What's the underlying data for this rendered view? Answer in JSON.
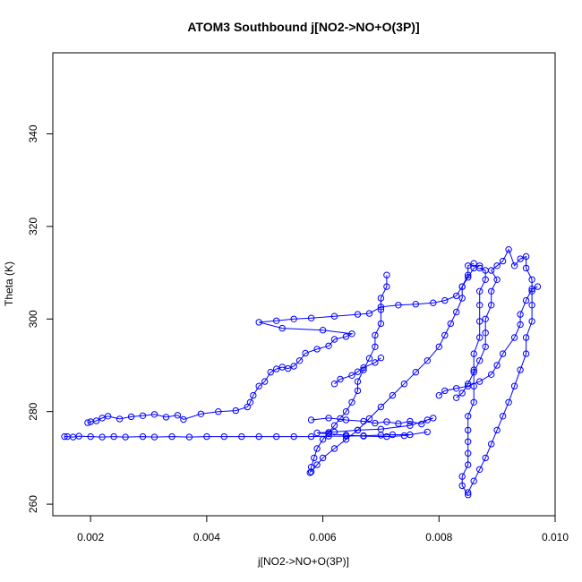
{
  "chart_data": {
    "type": "scatter",
    "title": "ATOM3 Southbound j[NO2->NO+O(3P)]",
    "xlabel": "j[NO2->NO+O(3P)]",
    "ylabel": "Theta (K)",
    "xlim": [
      0.00135,
      0.01
    ],
    "ylim": [
      257.5,
      357.5
    ],
    "x_ticks": [
      0.002,
      0.004,
      0.006,
      0.008,
      0.01
    ],
    "x_tick_labels": [
      "0.002",
      "0.004",
      "0.006",
      "0.008",
      "0.010"
    ],
    "y_ticks": [
      260,
      280,
      300,
      320,
      340
    ],
    "y_tick_labels": [
      "260",
      "280",
      "300",
      "320",
      "340"
    ],
    "grid": false,
    "marker": "open-circle",
    "connected_by_lines": true,
    "color": "#0000ff",
    "series": [
      {
        "points": [
          [
            0.00155,
            274.6
          ],
          [
            0.0016,
            274.6
          ],
          [
            0.0017,
            274.5
          ],
          [
            0.0018,
            274.7
          ],
          [
            0.002,
            274.6
          ],
          [
            0.0022,
            274.5
          ],
          [
            0.0024,
            274.6
          ],
          [
            0.0026,
            274.5
          ],
          [
            0.0029,
            274.6
          ],
          [
            0.0031,
            274.5
          ],
          [
            0.0034,
            274.6
          ],
          [
            0.0037,
            274.5
          ],
          [
            0.004,
            274.6
          ],
          [
            0.0043,
            274.6
          ],
          [
            0.0046,
            274.6
          ],
          [
            0.0049,
            274.6
          ],
          [
            0.0052,
            274.6
          ],
          [
            0.0055,
            274.6
          ],
          [
            0.0058,
            274.6
          ],
          [
            0.0061,
            274.7
          ],
          [
            0.0064,
            274.7
          ],
          [
            0.0067,
            274.8
          ],
          [
            0.007,
            274.9
          ],
          [
            0.0072,
            275.0
          ],
          [
            0.0075,
            275.0
          ]
        ]
      },
      {
        "points": [
          [
            0.00195,
            277.6
          ],
          [
            0.002,
            277.8
          ],
          [
            0.0021,
            278.0
          ],
          [
            0.0022,
            278.6
          ],
          [
            0.0023,
            279.0
          ],
          [
            0.0025,
            278.4
          ],
          [
            0.0027,
            278.9
          ],
          [
            0.0029,
            279.1
          ],
          [
            0.0031,
            279.4
          ],
          [
            0.0033,
            278.8
          ],
          [
            0.0035,
            279.2
          ],
          [
            0.0036,
            278.3
          ],
          [
            0.0039,
            279.5
          ],
          [
            0.0042,
            280.0
          ],
          [
            0.0045,
            280.2
          ],
          [
            0.0047,
            281.0
          ],
          [
            0.00475,
            282.0
          ],
          [
            0.0048,
            283.5
          ],
          [
            0.0049,
            285.5
          ],
          [
            0.005,
            286.5
          ],
          [
            0.0051,
            288.5
          ],
          [
            0.0052,
            289.2
          ],
          [
            0.0053,
            289.6
          ],
          [
            0.0054,
            289.3
          ],
          [
            0.0055,
            289.8
          ],
          [
            0.0056,
            291.0
          ],
          [
            0.0057,
            292.6
          ],
          [
            0.0059,
            293.5
          ],
          [
            0.0061,
            294.2
          ],
          [
            0.0062,
            295.6
          ],
          [
            0.0064,
            296.2
          ],
          [
            0.0065,
            296.8
          ],
          [
            0.006,
            297.6
          ],
          [
            0.0053,
            298.0
          ],
          [
            0.0049,
            299.3
          ],
          [
            0.0052,
            299.6
          ],
          [
            0.0055,
            300.0
          ],
          [
            0.0058,
            300.2
          ],
          [
            0.0062,
            300.6
          ],
          [
            0.0066,
            301.0
          ],
          [
            0.0068,
            301.2
          ],
          [
            0.007,
            302.6
          ],
          [
            0.0073,
            303.0
          ],
          [
            0.0076,
            303.2
          ],
          [
            0.0079,
            303.5
          ],
          [
            0.0081,
            304.0
          ],
          [
            0.0083,
            305.0
          ],
          [
            0.0084,
            307.0
          ],
          [
            0.0085,
            309.0
          ],
          [
            0.0086,
            311.0
          ],
          [
            0.0087,
            311.5
          ]
        ]
      },
      {
        "points": [
          [
            0.0058,
            278.2
          ],
          [
            0.0061,
            278.6
          ],
          [
            0.0064,
            278.2
          ],
          [
            0.0067,
            277.9
          ],
          [
            0.0069,
            277.5
          ],
          [
            0.0071,
            277.8
          ],
          [
            0.0073,
            277.4
          ],
          [
            0.0075,
            277.9
          ],
          [
            0.0077,
            277.3
          ],
          [
            0.0078,
            278.2
          ],
          [
            0.0079,
            278.6
          ],
          [
            0.0075,
            277.0
          ],
          [
            0.007,
            276.2
          ],
          [
            0.0066,
            276.0
          ],
          [
            0.0062,
            275.6
          ],
          [
            0.0059,
            275.4
          ],
          [
            0.0061,
            275.2
          ],
          [
            0.0064,
            274.9
          ],
          [
            0.0067,
            274.7
          ],
          [
            0.0071,
            274.6
          ],
          [
            0.0074,
            274.8
          ],
          [
            0.0078,
            275.6
          ]
        ]
      },
      {
        "points": [
          [
            0.00578,
            266.8
          ],
          [
            0.0058,
            268.0
          ],
          [
            0.00585,
            270.0
          ],
          [
            0.0059,
            272.0
          ],
          [
            0.006,
            274.0
          ],
          [
            0.0061,
            275.5
          ],
          [
            0.0062,
            277.0
          ],
          [
            0.0063,
            278.5
          ],
          [
            0.0064,
            280.0
          ],
          [
            0.0065,
            282.0
          ],
          [
            0.0066,
            284.5
          ],
          [
            0.0066,
            286.5
          ],
          [
            0.0067,
            289.0
          ],
          [
            0.0068,
            291.5
          ],
          [
            0.0069,
            294.0
          ],
          [
            0.0069,
            296.5
          ],
          [
            0.007,
            299.0
          ],
          [
            0.007,
            302.0
          ],
          [
            0.007,
            304.5
          ],
          [
            0.0071,
            307.0
          ],
          [
            0.0071,
            309.5
          ]
        ]
      },
      {
        "points": [
          [
            0.0058,
            267.0
          ],
          [
            0.0059,
            268.5
          ],
          [
            0.006,
            270.0
          ],
          [
            0.0062,
            272.0
          ],
          [
            0.0064,
            274.0
          ],
          [
            0.0066,
            276.0
          ],
          [
            0.0068,
            278.5
          ],
          [
            0.007,
            281.0
          ],
          [
            0.0072,
            283.5
          ],
          [
            0.0074,
            286.0
          ],
          [
            0.0076,
            288.5
          ],
          [
            0.0078,
            291.0
          ],
          [
            0.008,
            294.0
          ],
          [
            0.0081,
            296.5
          ],
          [
            0.0082,
            299.0
          ],
          [
            0.0083,
            301.5
          ],
          [
            0.0084,
            304.5
          ],
          [
            0.0084,
            307.0
          ],
          [
            0.0085,
            309.5
          ],
          [
            0.0085,
            311.5
          ],
          [
            0.0086,
            312.0
          ]
        ]
      },
      {
        "points": [
          [
            0.0062,
            286.0
          ],
          [
            0.0063,
            287.0
          ],
          [
            0.0065,
            287.8
          ],
          [
            0.0066,
            288.6
          ],
          [
            0.0067,
            289.5
          ],
          [
            0.0069,
            290.6
          ],
          [
            0.007,
            291.6
          ]
        ]
      },
      {
        "points": [
          [
            0.0085,
            262.0
          ],
          [
            0.0084,
            264.0
          ],
          [
            0.0084,
            266.0
          ],
          [
            0.0085,
            268.5
          ],
          [
            0.0085,
            271.0
          ],
          [
            0.0085,
            273.5
          ],
          [
            0.0085,
            276.0
          ],
          [
            0.0085,
            279.0
          ],
          [
            0.0086,
            282.0
          ],
          [
            0.0086,
            285.5
          ],
          [
            0.0086,
            289.0
          ],
          [
            0.0086,
            292.5
          ],
          [
            0.0087,
            296.0
          ],
          [
            0.0087,
            299.5
          ],
          [
            0.0087,
            303.0
          ],
          [
            0.0087,
            306.0
          ],
          [
            0.0088,
            308.5
          ],
          [
            0.0088,
            310.5
          ],
          [
            0.0087,
            311.0
          ]
        ]
      },
      {
        "points": [
          [
            0.0085,
            262.5
          ],
          [
            0.0086,
            265.0
          ],
          [
            0.0087,
            267.5
          ],
          [
            0.0088,
            270.0
          ],
          [
            0.0089,
            273.0
          ],
          [
            0.009,
            276.0
          ],
          [
            0.0091,
            279.0
          ],
          [
            0.0092,
            282.0
          ],
          [
            0.0093,
            285.5
          ],
          [
            0.0094,
            289.0
          ],
          [
            0.0095,
            292.5
          ],
          [
            0.0095,
            296.0
          ],
          [
            0.0096,
            299.5
          ],
          [
            0.0096,
            303.0
          ],
          [
            0.0096,
            306.0
          ],
          [
            0.0096,
            308.5
          ],
          [
            0.0095,
            311.0
          ],
          [
            0.0095,
            313.5
          ],
          [
            0.0094,
            313.0
          ],
          [
            0.0093,
            311.5
          ],
          [
            0.0092,
            315.0
          ],
          [
            0.0091,
            312.5
          ],
          [
            0.009,
            311.5
          ],
          [
            0.0089,
            310.5
          ],
          [
            0.009,
            308.5
          ],
          [
            0.0089,
            306.0
          ],
          [
            0.0089,
            303.0
          ],
          [
            0.0088,
            300.0
          ],
          [
            0.0088,
            297.0
          ],
          [
            0.0088,
            294.0
          ],
          [
            0.0087,
            291.0
          ],
          [
            0.0086,
            288.5
          ],
          [
            0.0085,
            286.0
          ],
          [
            0.0084,
            284.0
          ],
          [
            0.0083,
            283.0
          ]
        ]
      },
      {
        "points": [
          [
            0.008,
            283.5
          ],
          [
            0.0081,
            284.5
          ],
          [
            0.0083,
            285.0
          ],
          [
            0.0085,
            285.5
          ],
          [
            0.0087,
            286.5
          ],
          [
            0.0089,
            288.0
          ],
          [
            0.009,
            290.0
          ],
          [
            0.0091,
            292.5
          ],
          [
            0.0093,
            296.0
          ],
          [
            0.0094,
            298.8
          ],
          [
            0.0094,
            301.0
          ],
          [
            0.0095,
            304.0
          ],
          [
            0.0096,
            306.5
          ],
          [
            0.0097,
            307.0
          ]
        ]
      }
    ]
  }
}
